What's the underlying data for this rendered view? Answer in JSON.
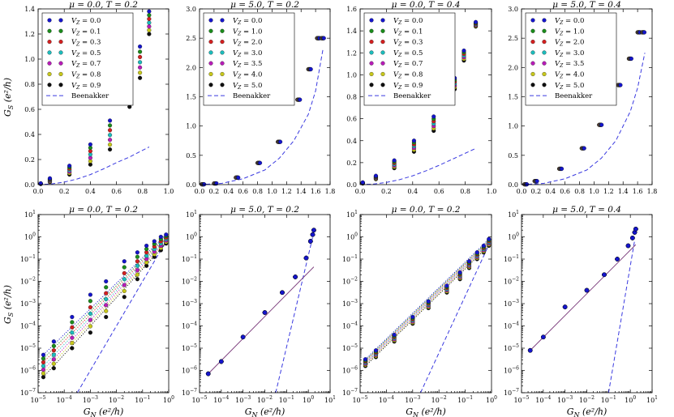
{
  "colors": [
    "#1515cc",
    "#1c8c1c",
    "#d42020",
    "#1cbcbc",
    "#b81cb8",
    "#c8c81c",
    "#101010"
  ],
  "beenakker_color": "#3a3ae0",
  "beenakker_label": "Beenakker",
  "ylabel_top": "G_S (e²/h)",
  "ylabel_bottom": "G_S (e²/h)",
  "xlabel": "G_N (e²/h)",
  "chart_data": [
    {
      "type": "scatter",
      "title": "μ = 0.0, T = 0.2",
      "xlim": [
        0,
        1.0
      ],
      "ylim": [
        0,
        1.4
      ],
      "xticks": [
        "0.0",
        "0.2",
        "0.4",
        "0.6",
        "0.8",
        "1.0"
      ],
      "yticks": [
        "0.0",
        "0.2",
        "0.4",
        "0.6",
        "0.8",
        "1.0",
        "1.2",
        "1.4"
      ],
      "legend": [
        "V_Z = 0.0",
        "V_Z = 0.1",
        "V_Z = 0.3",
        "V_Z = 0.5",
        "V_Z = 0.7",
        "V_Z = 0.8",
        "V_Z = 0.9"
      ],
      "x": [
        0.02,
        0.09,
        0.24,
        0.4,
        0.55,
        0.7,
        0.78,
        0.85
      ],
      "series_min": [
        0.005,
        0.02,
        0.08,
        0.16,
        0.28,
        0.62,
        0.85,
        1.2
      ],
      "series_max": [
        0.01,
        0.05,
        0.15,
        0.32,
        0.51,
        0.85,
        1.1,
        1.38
      ],
      "beenakker": [
        [
          0,
          0
        ],
        [
          0.1,
          0.005
        ],
        [
          0.2,
          0.02
        ],
        [
          0.3,
          0.045
        ],
        [
          0.4,
          0.08
        ],
        [
          0.5,
          0.125
        ],
        [
          0.6,
          0.175
        ],
        [
          0.7,
          0.22
        ],
        [
          0.85,
          0.3
        ]
      ]
    },
    {
      "type": "scatter",
      "title": "μ = 5.0, T = 0.2",
      "xlim": [
        0,
        1.8
      ],
      "ylim": [
        0,
        3.0
      ],
      "xticks": [
        "0.0",
        "0.2",
        "0.4",
        "0.6",
        "0.8",
        "1.0",
        "1.2",
        "1.4",
        "1.6",
        "1.8"
      ],
      "yticks": [
        "0.0",
        "0.5",
        "1.0",
        "1.5",
        "2.0",
        "2.5",
        "3.0"
      ],
      "legend": [
        "V_Z = 0.0",
        "V_Z = 1.0",
        "V_Z = 2.0",
        "V_Z = 3.0",
        "V_Z = 3.5",
        "V_Z = 4.0",
        "V_Z = 5.0"
      ],
      "x": [
        0.03,
        0.2,
        0.5,
        0.8,
        1.08,
        1.35,
        1.5,
        1.62,
        1.68
      ],
      "series_min": [
        0.005,
        0.02,
        0.12,
        0.37,
        0.73,
        1.45,
        1.97,
        2.5,
        2.5
      ],
      "series_max": [
        0.005,
        0.02,
        0.12,
        0.37,
        0.73,
        1.45,
        1.97,
        2.5,
        2.5
      ],
      "beenakker": [
        [
          0,
          0
        ],
        [
          0.3,
          0.02
        ],
        [
          0.6,
          0.1
        ],
        [
          0.9,
          0.25
        ],
        [
          1.1,
          0.45
        ],
        [
          1.3,
          0.75
        ],
        [
          1.5,
          1.2
        ],
        [
          1.6,
          1.6
        ],
        [
          1.7,
          2.3
        ]
      ]
    },
    {
      "type": "scatter",
      "title": "μ = 0.0, T = 0.4",
      "xlim": [
        0,
        1.0
      ],
      "ylim": [
        0,
        1.6
      ],
      "xticks": [
        "0.0",
        "0.2",
        "0.4",
        "0.6",
        "0.8",
        "1.0"
      ],
      "yticks": [
        "0.0",
        "0.2",
        "0.4",
        "0.6",
        "0.8",
        "1.0",
        "1.2",
        "1.4",
        "1.6"
      ],
      "legend": [
        "V_Z = 0.0",
        "V_Z = 0.1",
        "V_Z = 0.3",
        "V_Z = 0.5",
        "V_Z = 0.7",
        "V_Z = 0.8",
        "V_Z = 0.9"
      ],
      "x": [
        0.02,
        0.12,
        0.26,
        0.41,
        0.56,
        0.72,
        0.79,
        0.88
      ],
      "series_min": [
        0.01,
        0.05,
        0.15,
        0.3,
        0.49,
        0.87,
        1.13,
        1.44
      ],
      "series_max": [
        0.02,
        0.08,
        0.22,
        0.4,
        0.62,
        0.97,
        1.22,
        1.48
      ],
      "beenakker": [
        [
          0,
          0
        ],
        [
          0.1,
          0.005
        ],
        [
          0.2,
          0.02
        ],
        [
          0.3,
          0.045
        ],
        [
          0.4,
          0.08
        ],
        [
          0.5,
          0.125
        ],
        [
          0.6,
          0.175
        ],
        [
          0.7,
          0.23
        ],
        [
          0.88,
          0.33
        ]
      ]
    },
    {
      "type": "scatter",
      "title": "μ = 5.0, T = 0.4",
      "xlim": [
        0,
        1.8
      ],
      "ylim": [
        0,
        3.0
      ],
      "xticks": [
        "0.0",
        "0.2",
        "0.4",
        "0.6",
        "0.8",
        "1.0",
        "1.2",
        "1.4",
        "1.6",
        "1.8"
      ],
      "yticks": [
        "0.0",
        "0.5",
        "1.0",
        "1.5",
        "2.0",
        "2.5",
        "3.0"
      ],
      "legend": [
        "V_Z = 0.0",
        "V_Z = 1.0",
        "V_Z = 2.0",
        "V_Z = 3.0",
        "V_Z = 3.5",
        "V_Z = 4.0",
        "V_Z = 5.0"
      ],
      "x": [
        0.04,
        0.18,
        0.52,
        0.83,
        1.07,
        1.33,
        1.48,
        1.6,
        1.66
      ],
      "series_min": [
        0.005,
        0.06,
        0.27,
        0.62,
        1.02,
        1.7,
        2.15,
        2.6,
        2.6
      ],
      "series_max": [
        0.005,
        0.06,
        0.27,
        0.62,
        1.02,
        1.7,
        2.15,
        2.6,
        2.6
      ],
      "beenakker": [
        [
          0,
          0
        ],
        [
          0.3,
          0.02
        ],
        [
          0.6,
          0.1
        ],
        [
          0.9,
          0.25
        ],
        [
          1.1,
          0.45
        ],
        [
          1.3,
          0.75
        ],
        [
          1.5,
          1.25
        ],
        [
          1.6,
          1.65
        ],
        [
          1.7,
          2.25
        ]
      ]
    },
    {
      "type": "scatter",
      "title": "μ = 0.0, T = 0.2",
      "xscale": "log",
      "yscale": "log",
      "xlim_exp": [
        -5,
        0
      ],
      "ylim_exp": [
        -7,
        1
      ],
      "points_logx": [
        -4.8,
        -4.4,
        -3.7,
        -3.0,
        -2.4,
        -1.7,
        -1.2,
        -0.85,
        -0.55,
        -0.3,
        -0.1
      ],
      "points_logy_top": [
        -5.3,
        -4.7,
        -3.6,
        -2.6,
        -2.0,
        -1.1,
        -0.7,
        -0.4,
        -0.2,
        0.0,
        0.1
      ],
      "points_logy_bottom": [
        -6.3,
        -5.9,
        -5.0,
        -4.3,
        -3.6,
        -2.7,
        -1.9,
        -1.3,
        -0.9,
        -0.6,
        -0.3
      ],
      "beenakker_logx": [
        -3.5,
        0.0
      ],
      "beenakker_logy": [
        -7.0,
        0.0
      ]
    },
    {
      "type": "scatter",
      "title": "μ = 5.0, T = 0.2",
      "xscale": "log",
      "yscale": "log",
      "xlim_exp": [
        -5,
        1
      ],
      "ylim_exp": [
        -7,
        1
      ],
      "points_logx": [
        -4.6,
        -4.0,
        -3.0,
        -2.0,
        -1.2,
        -0.6,
        -0.1,
        0.1,
        0.2,
        0.25
      ],
      "points_logy": [
        -6.15,
        -5.6,
        -4.5,
        -3.4,
        -2.5,
        -1.8,
        -0.95,
        -0.2,
        0.1,
        0.3
      ],
      "fit_logy_end": -1.35,
      "beenakker_logx": [
        -1.5,
        0.3
      ],
      "beenakker_logy": [
        -7.0,
        0.4
      ]
    },
    {
      "type": "scatter",
      "title": "μ = 0.0, T = 0.2",
      "xscale": "log",
      "yscale": "log",
      "xlim_exp": [
        -5,
        0
      ],
      "ylim_exp": [
        -7,
        1
      ],
      "points_logx": [
        -4.8,
        -4.4,
        -3.7,
        -3.0,
        -2.4,
        -1.7,
        -1.2,
        -0.85,
        -0.55,
        -0.3,
        -0.1
      ],
      "points_logy_top": [
        -5.5,
        -5.1,
        -4.4,
        -3.6,
        -2.9,
        -2.2,
        -1.6,
        -1.1,
        -0.7,
        -0.4,
        -0.1
      ],
      "points_logy_bottom": [
        -5.8,
        -5.4,
        -4.7,
        -3.9,
        -3.2,
        -2.5,
        -1.9,
        -1.4,
        -1.0,
        -0.7,
        -0.4
      ],
      "beenakker_logx": [
        -2.7,
        0.0
      ],
      "beenakker_logy": [
        -7.0,
        -0.1
      ]
    },
    {
      "type": "scatter",
      "title": "μ = 5.0, T = 0.4",
      "xscale": "log",
      "yscale": "log",
      "xlim_exp": [
        -5,
        1
      ],
      "ylim_exp": [
        -7,
        1
      ],
      "points_logx": [
        -4.6,
        -4.0,
        -3.0,
        -2.0,
        -1.2,
        -0.6,
        -0.1,
        0.1,
        0.2,
        0.25
      ],
      "points_logy": [
        -5.1,
        -4.5,
        -3.15,
        -2.4,
        -1.7,
        -1.0,
        -0.4,
        -0.05,
        0.2,
        0.35
      ],
      "fit_logy_end": -0.35,
      "beenakker_logx": [
        -1.0,
        0.2
      ],
      "beenakker_logy": [
        -7.0,
        -0.15
      ]
    }
  ]
}
